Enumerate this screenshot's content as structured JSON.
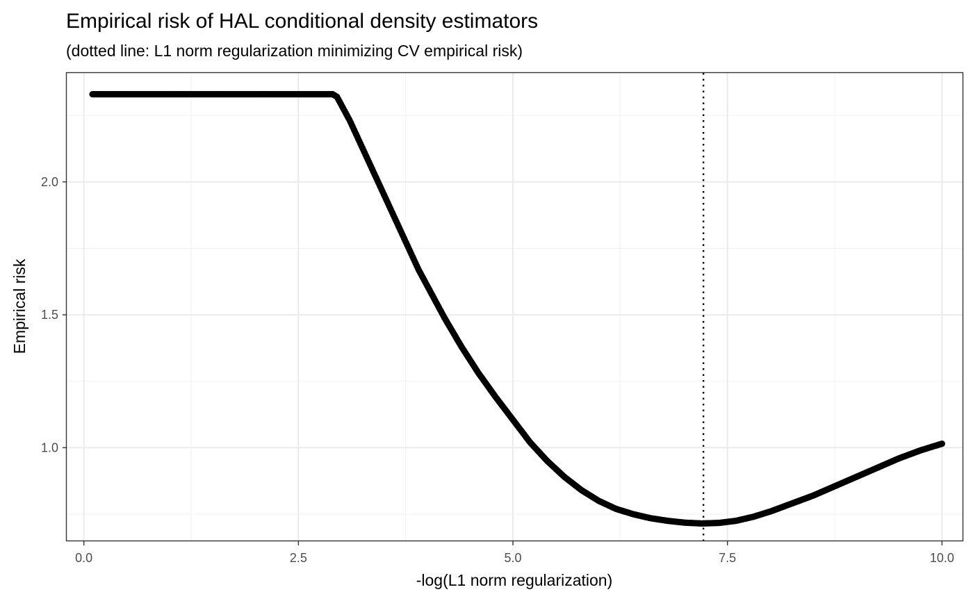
{
  "chart_data": {
    "type": "scatter",
    "title": "Empirical risk of HAL conditional density estimators",
    "subtitle": "(dotted line: L1 norm regularization minimizing CV empirical risk)",
    "xlabel": "-log(L1 norm regularization)",
    "ylabel": "Empirical risk",
    "xlim": [
      -0.2,
      10.24
    ],
    "ylim": [
      0.648,
      2.41
    ],
    "x_ticks": [
      0,
      2.5,
      5,
      7.5,
      10
    ],
    "x_tick_labels": [
      "0.0",
      "2.5",
      "5.0",
      "7.5",
      "10.0"
    ],
    "y_ticks": [
      1.0,
      1.5,
      2.0
    ],
    "y_tick_labels": [
      "1.0",
      "1.5",
      "2.0"
    ],
    "x_minor_ticks": [
      1.25,
      3.75,
      6.25,
      8.75
    ],
    "y_minor_ticks": [
      0.75,
      1.25,
      1.75,
      2.25
    ],
    "grid": true,
    "legend": "none",
    "point_color": "#000000",
    "vline": {
      "x": 7.22,
      "style": "dotted"
    },
    "series": [
      {
        "x": [
          0.1,
          0.5,
          1.0,
          1.5,
          2.0,
          2.5,
          2.8,
          2.9,
          2.95,
          3.0,
          3.05,
          3.1,
          3.2,
          3.3,
          3.4,
          3.5,
          3.6,
          3.7,
          3.8,
          3.9,
          4.0,
          4.2,
          4.4,
          4.6,
          4.8,
          5.0,
          5.2,
          5.4,
          5.6,
          5.8,
          6.0,
          6.2,
          6.4,
          6.6,
          6.8,
          7.0,
          7.2,
          7.4,
          7.6,
          7.8,
          8.0,
          8.25,
          8.5,
          8.75,
          9.0,
          9.25,
          9.5,
          9.75,
          10.0
        ],
        "y": [
          2.33,
          2.33,
          2.33,
          2.33,
          2.33,
          2.33,
          2.33,
          2.33,
          2.32,
          2.29,
          2.26,
          2.23,
          2.16,
          2.09,
          2.02,
          1.95,
          1.88,
          1.81,
          1.74,
          1.67,
          1.61,
          1.49,
          1.38,
          1.28,
          1.19,
          1.105,
          1.02,
          0.95,
          0.89,
          0.84,
          0.8,
          0.77,
          0.75,
          0.735,
          0.725,
          0.718,
          0.715,
          0.717,
          0.725,
          0.74,
          0.76,
          0.79,
          0.82,
          0.855,
          0.89,
          0.925,
          0.96,
          0.99,
          1.015
        ]
      }
    ]
  }
}
